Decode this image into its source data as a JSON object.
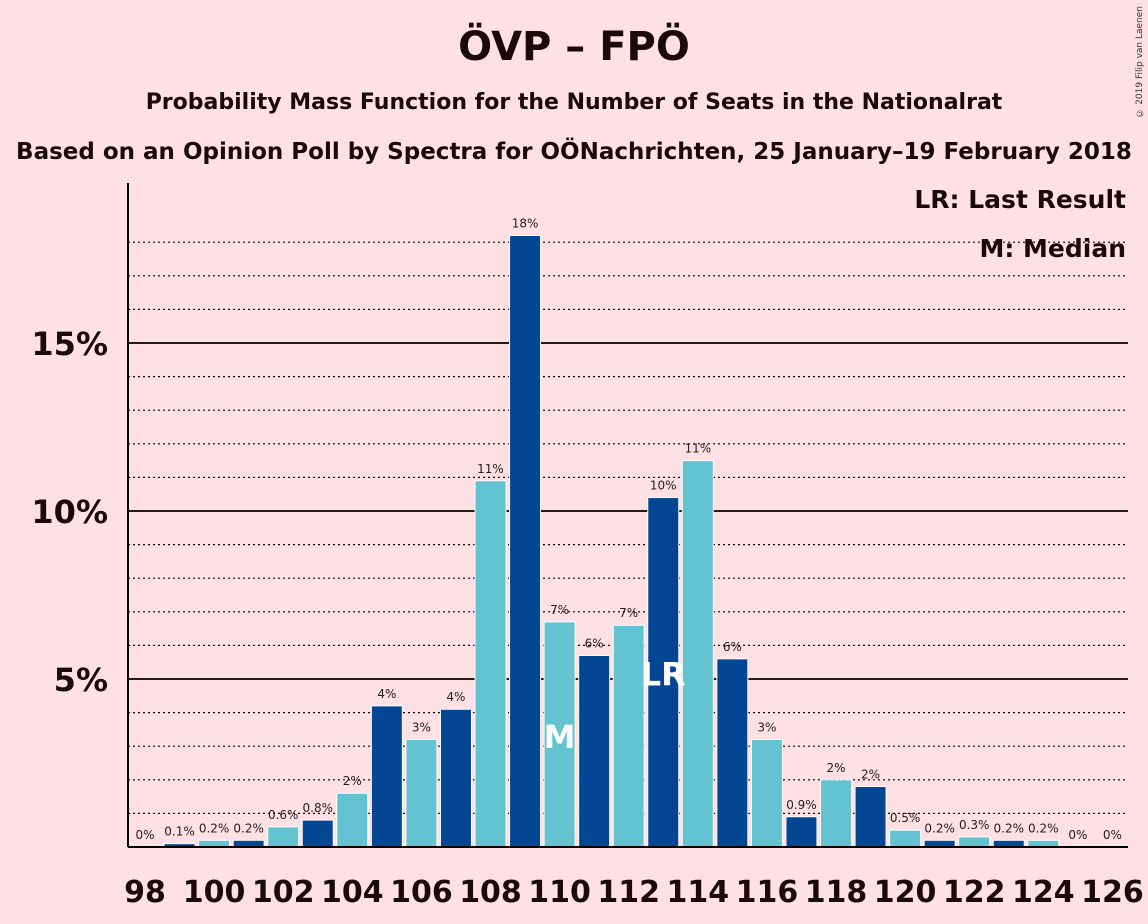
{
  "title": "ÖVP – FPÖ",
  "subtitle": "Probability Mass Function for the Number of Seats in the Nationalrat",
  "source_line": "Based on an Opinion Poll by Spectra for OÖNachrichten, 25 January–19 February 2018",
  "copyright": "© 2019 Filip van Laenen",
  "legend": {
    "last_result": "LR: Last Result",
    "median": "M: Median"
  },
  "colors": {
    "background": "#ffe0e4",
    "bar_dark": "#034694",
    "bar_light": "#63c3d1"
  },
  "chart_data": {
    "type": "bar",
    "x": [
      98,
      99,
      100,
      101,
      102,
      103,
      104,
      105,
      106,
      107,
      108,
      109,
      110,
      111,
      112,
      113,
      114,
      115,
      116,
      117,
      118,
      119,
      120,
      121,
      122,
      123,
      124,
      125,
      126
    ],
    "values": [
      0,
      0.1,
      0.2,
      0.2,
      0.6,
      0.8,
      1.6,
      4.2,
      3.2,
      4.1,
      10.9,
      18.2,
      6.7,
      5.7,
      6.6,
      10.4,
      11.5,
      5.6,
      3.2,
      0.9,
      2.0,
      1.8,
      0.5,
      0.2,
      0.3,
      0.2,
      0.2,
      0,
      0
    ],
    "labels": [
      "0%",
      "0.1%",
      "0.2%",
      "0.2%",
      "0.6%",
      "0.8%",
      "2%",
      "4%",
      "3%",
      "4%",
      "11%",
      "18%",
      "7%",
      "6%",
      "7%",
      "10%",
      "11%",
      "6%",
      "3%",
      "0.9%",
      "2%",
      "2%",
      "0.5%",
      "0.2%",
      "0.3%",
      "0.2%",
      "0.2%",
      "0%",
      "0%"
    ],
    "x_tick_labels": [
      "98",
      "100",
      "102",
      "104",
      "106",
      "108",
      "110",
      "112",
      "114",
      "116",
      "118",
      "120",
      "122",
      "124",
      "126"
    ],
    "y_tick_labels": [
      "5%",
      "10%",
      "15%"
    ],
    "y_ticks": [
      5,
      10,
      15
    ],
    "ylim": [
      0,
      20
    ],
    "median": 110,
    "median_marker": "M",
    "last_result": 113,
    "last_result_marker": "LR",
    "grid": true
  }
}
